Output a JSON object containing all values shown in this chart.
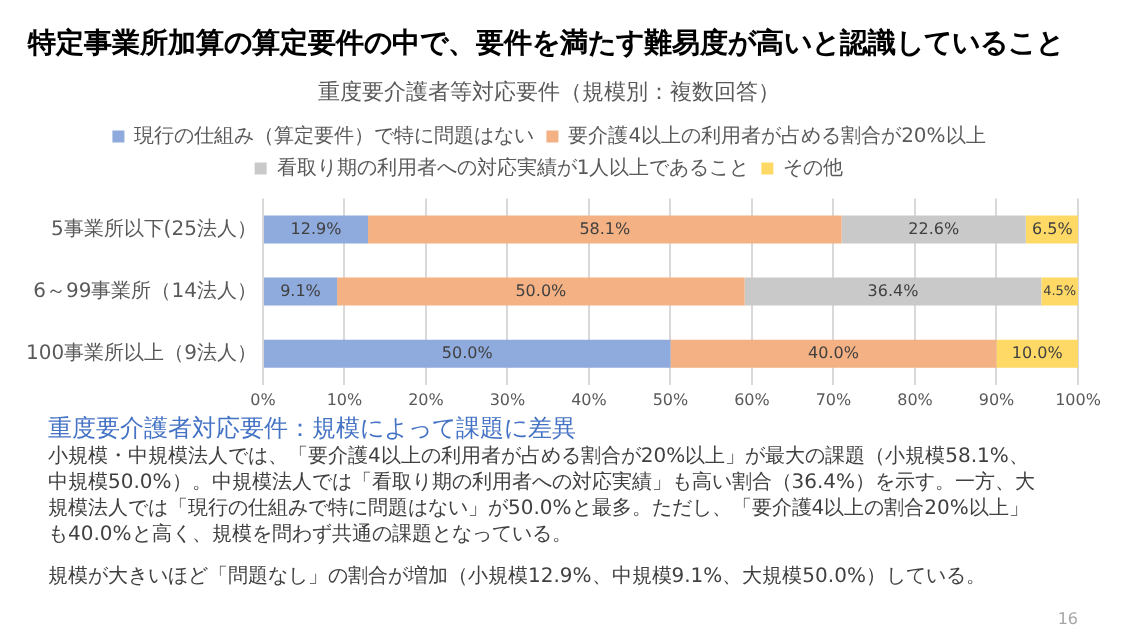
{
  "chart_data": {
    "type": "bar",
    "orientation": "horizontal",
    "stacked": true,
    "title": "特定事業所加算の算定要件の中で、要件を満たす難易度が高いと認識していること",
    "subtitle": "重度要介護者等対応要件（規模別：複数回答）",
    "categories": [
      "5事業所以下(25法人）",
      "6～99事業所（14法人）",
      "100事業所以上（9法人）"
    ],
    "series": [
      {
        "name": "現行の仕組み（算定要件）で特に問題はない",
        "color": "#8faadc",
        "values": [
          12.9,
          9.1,
          50.0
        ],
        "value_labels": [
          "12.9%",
          "9.1%",
          "50.0%"
        ]
      },
      {
        "name": "要介護4以上の利用者が占める割合が20%以上",
        "color": "#f4b183",
        "values": [
          58.1,
          50.0,
          40.0
        ],
        "value_labels": [
          "58.1%",
          "50.0%",
          "40.0%"
        ]
      },
      {
        "name": "看取り期の利用者への対応実績が1人以上であること",
        "color": "#c9c9c9",
        "values": [
          22.6,
          36.4,
          0
        ],
        "value_labels": [
          "22.6%",
          "36.4%",
          null
        ]
      },
      {
        "name": "その他",
        "color": "#ffd966",
        "values": [
          6.5,
          4.5,
          10.0
        ],
        "value_labels": [
          "6.5%",
          "4.5%",
          "10.0%"
        ]
      }
    ],
    "xlim": [
      0,
      100
    ],
    "xticks": [
      {
        "value": 0,
        "label": "0%"
      },
      {
        "value": 10,
        "label": "10%"
      },
      {
        "value": 20,
        "label": "20%"
      },
      {
        "value": 30,
        "label": "30%"
      },
      {
        "value": 40,
        "label": "40%"
      },
      {
        "value": 50,
        "label": "50%"
      },
      {
        "value": 60,
        "label": "60%"
      },
      {
        "value": 70,
        "label": "70%"
      },
      {
        "value": 80,
        "label": "80%"
      },
      {
        "value": 90,
        "label": "90%"
      },
      {
        "value": 100,
        "label": "100%"
      }
    ],
    "grid": "x",
    "legend": "top",
    "annotations": [
      "重度要介護者対応要件：規模によって課題に差異",
      "小規模・中規模法人では、「要介護4以上の利用者が占める割合が20%以上」が最大の課題（小規模58.1%、中規模50.0%）。中規模法人では「看取り期の利用者への対応実績」も高い割合（36.4%）を示す。一方、大規模法人では「現行の仕組みで特に問題はない」が50.0%と最多。ただし、「要介護4以上の割合20%以上」も40.0%と高く、規模を問わず共通の課題となっている。",
      "規模が大きいほど「問題なし」の割合が増加（小規模12.9%、中規模9.1%、大規模50.0%）している。",
      "16"
    ]
  }
}
